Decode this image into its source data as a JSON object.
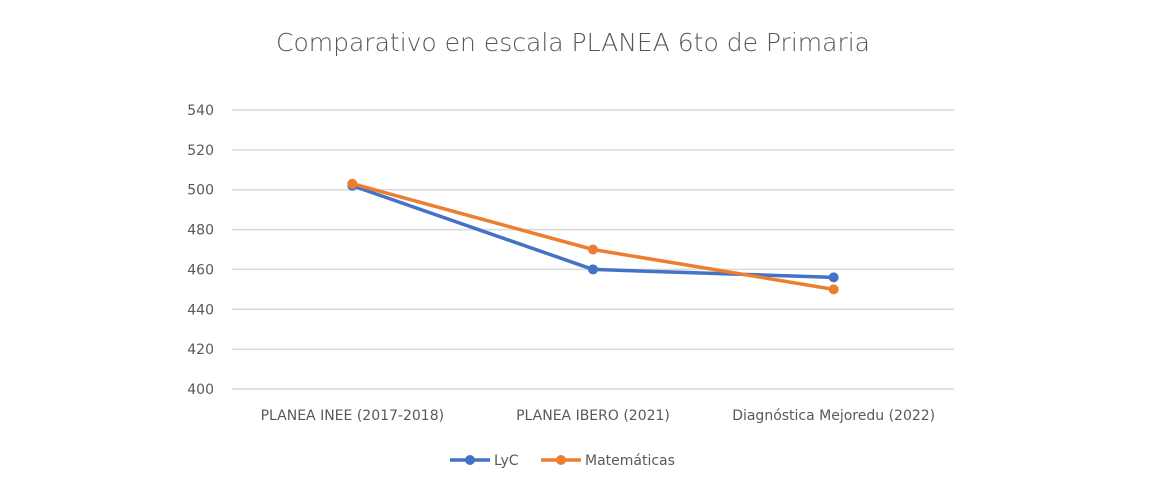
{
  "chart_data": {
    "type": "line",
    "title": "Comparativo en escala PLANEA 6to de Primaria",
    "xlabel": "",
    "ylabel": "",
    "categories": [
      "PLANEA INEE (2017-2018)",
      "PLANEA IBERO (2021)",
      "Diagnóstica Mejoredu (2022)"
    ],
    "ylim": [
      400,
      540
    ],
    "yticks": [
      400,
      420,
      440,
      460,
      480,
      500,
      520,
      540
    ],
    "grid": true,
    "legend_position": "bottom",
    "series": [
      {
        "name": "LyC",
        "color": "#4472C4",
        "values": [
          502,
          460,
          456
        ]
      },
      {
        "name": "Matemáticas",
        "color": "#ED7D31",
        "values": [
          503,
          470,
          450
        ]
      }
    ]
  }
}
